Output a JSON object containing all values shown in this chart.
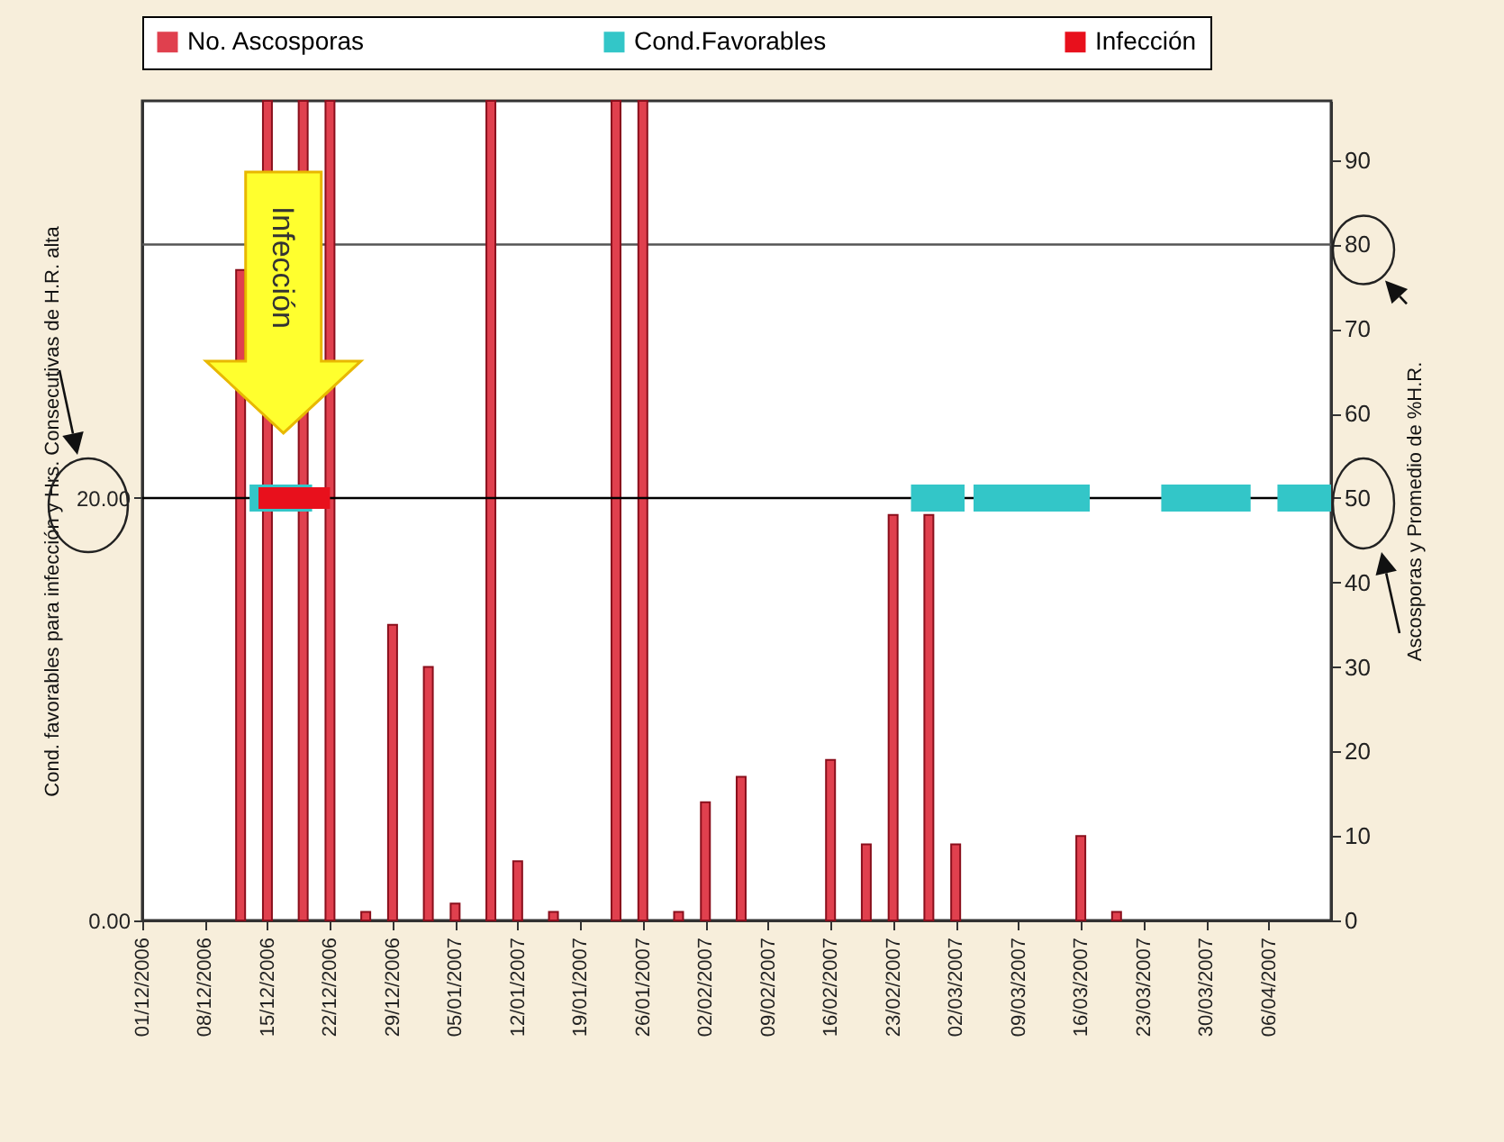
{
  "chart_data": {
    "type": "bar",
    "ylabel": "Cond. favorables para infección y Hrs. Consecutivas de H.R. alta",
    "y2label": "Ascosporas y Promedio de %H.R.",
    "xlim": [
      "2006-12-01",
      "2007-04-13"
    ],
    "xticks": [
      {
        "value": "2006-12-01",
        "label": "01/12/2006"
      },
      {
        "value": "2006-12-08",
        "label": "08/12/2006"
      },
      {
        "value": "2006-12-15",
        "label": "15/12/2006"
      },
      {
        "value": "2006-12-22",
        "label": "22/12/2006"
      },
      {
        "value": "2006-12-29",
        "label": "29/12/2006"
      },
      {
        "value": "2007-01-05",
        "label": "05/01/2007"
      },
      {
        "value": "2007-01-12",
        "label": "12/01/2007"
      },
      {
        "value": "2007-01-19",
        "label": "19/01/2007"
      },
      {
        "value": "2007-01-26",
        "label": "26/01/2007"
      },
      {
        "value": "2007-02-02",
        "label": "02/02/2007"
      },
      {
        "value": "2007-02-09",
        "label": "09/02/2007"
      },
      {
        "value": "2007-02-16",
        "label": "16/02/2007"
      },
      {
        "value": "2007-02-23",
        "label": "23/02/2007"
      },
      {
        "value": "2007-03-02",
        "label": "02/03/2007"
      },
      {
        "value": "2007-03-09",
        "label": "09/03/2007"
      },
      {
        "value": "2007-03-16",
        "label": "16/03/2007"
      },
      {
        "value": "2007-03-23",
        "label": "23/03/2007"
      },
      {
        "value": "2007-03-30",
        "label": "30/03/2007"
      },
      {
        "value": "2007-04-06",
        "label": "06/04/2007"
      }
    ],
    "ylim": [
      0,
      38.8
    ],
    "yticks": [
      {
        "value": 0,
        "label": "0.00"
      },
      {
        "value": 20,
        "label": "20.00"
      }
    ],
    "y2lim": [
      0,
      97
    ],
    "y2ticks": [
      0,
      10,
      20,
      30,
      40,
      50,
      60,
      70,
      80,
      90
    ],
    "legend": "top",
    "series": [
      {
        "name": "No. Ascosporas",
        "axis": "y2",
        "color": "#e0404e",
        "x": [
          "2006-12-12",
          "2006-12-15",
          "2006-12-19",
          "2006-12-22",
          "2006-12-26",
          "2006-12-29",
          "2007-01-02",
          "2007-01-05",
          "2007-01-09",
          "2007-01-12",
          "2007-01-16",
          "2007-01-23",
          "2007-01-26",
          "2007-01-30",
          "2007-02-02",
          "2007-02-06",
          "2007-02-16",
          "2007-02-20",
          "2007-02-23",
          "2007-02-27",
          "2007-03-02",
          "2007-03-16",
          "2007-03-20"
        ],
        "values": [
          77,
          97,
          97,
          97,
          1,
          35,
          30,
          2,
          97,
          7,
          1,
          97,
          97,
          1,
          14,
          17,
          19,
          9,
          48,
          48,
          9,
          10,
          1
        ]
      },
      {
        "name": "Cond.Favorables",
        "type": "line",
        "color": "#33c6c8",
        "x": [
          "2006-12-13",
          "2006-12-20",
          "2006-12-21",
          "2007-02-25",
          "2007-03-03",
          "2007-03-03T12:00",
          "2007-03-04",
          "2007-03-17",
          "2007-03-20",
          "2007-03-25",
          "2007-04-04",
          "2007-04-05",
          "2007-04-07",
          "2007-04-13"
        ],
        "values": [
          20,
          20,
          null,
          20,
          20,
          null,
          20,
          20,
          null,
          20,
          20,
          null,
          20,
          20
        ]
      },
      {
        "name": "Infección",
        "type": "line",
        "color": "#e8101c",
        "x": [
          "2006-12-14",
          "2006-12-22"
        ],
        "values": [
          20,
          20
        ]
      }
    ],
    "ref_lines": [
      {
        "axis": "y2",
        "value": 80,
        "color": "#555555"
      },
      {
        "axis": "y",
        "value": 20,
        "color": "#000000"
      }
    ],
    "annotations": [
      "Infección"
    ]
  }
}
